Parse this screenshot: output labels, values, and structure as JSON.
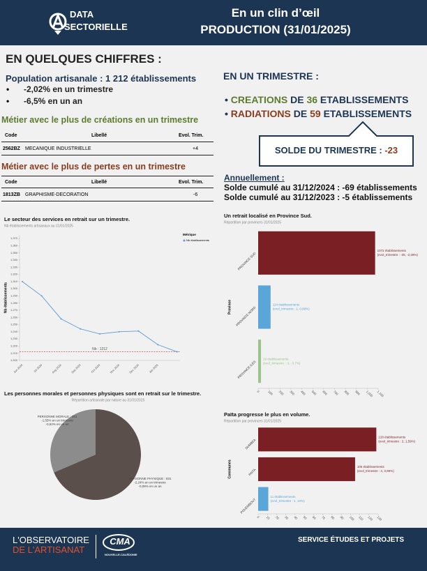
{
  "header": {
    "logo": [
      "DATA",
      "SECTORIELLE"
    ],
    "title": [
      "En un clin d’œil",
      "PRODUCTION (31/01/2025)"
    ]
  },
  "summary": {
    "heading": "EN QUELQUES CHIFFRES :",
    "population": "Population artisanale : 1 212 établissements",
    "bullets": [
      "-2,02% en un trimestre",
      "-6,5% en un an"
    ]
  },
  "creations_table": {
    "heading": "Métier avec le plus de créations en un trimestre",
    "columns": [
      "Code",
      "Libellé",
      "Evol. Trim."
    ],
    "rows": [
      [
        "2562BZ",
        "MECANIQUE INDUSTRIELLE",
        "+4"
      ]
    ]
  },
  "losses_table": {
    "heading": "Métier avec le plus de pertes en un trimestre",
    "columns": [
      "Code",
      "Libellé",
      "Evol. Trim."
    ],
    "rows": [
      [
        "1813ZB",
        "GRAPHISME-DECORATION",
        "-6"
      ]
    ]
  },
  "trimestre": {
    "heading": "EN UN TRIMESTRE :",
    "lines": [
      [
        "CREATIONS",
        "DE",
        "36",
        "ETABLISSEMENTS"
      ],
      [
        "RADIATIONS",
        "DE",
        "59",
        "ETABLISSEMENTS"
      ]
    ],
    "balance_label": "SOLDE DU TRIMESTRE :",
    "balance_value": "-23"
  },
  "annual": {
    "heading": "Annuellement :",
    "lines": [
      "Solde cumulé au 31/12/2024 : -69 établissements",
      "Solde cumulé au 31/12/2023 : -5 établissements"
    ]
  },
  "chart_data": [
    {
      "type": "line",
      "title": "Le secteur des services en retrait sur un trimestre.",
      "subtitle": "Nb établissements artisanaux au 31/01/2025",
      "y_label": "Nb établissements",
      "legend_title": "Métrique",
      "legend": "right",
      "categories": [
        "Jun 2024",
        "Jul 2024",
        "Aug 2024",
        "Sep 2024",
        "Oct 2024",
        "Nov 2024",
        "Dec 2024",
        "Jan 2025",
        null
      ],
      "series": [
        {
          "name": "Nb établissements",
          "color": "#5b9bd5",
          "values": [
            1310,
            1290,
            1258,
            1244,
            1237,
            1240,
            1241,
            1222,
            1212
          ]
        }
      ],
      "ylim": [
        1200,
        1375
      ],
      "yticks": [
        {
          "value": 1200,
          "label": "1,200"
        },
        {
          "value": 1210,
          "label": "1,210"
        },
        {
          "value": 1220,
          "label": "1,220"
        },
        {
          "value": 1230,
          "label": "1,230"
        },
        {
          "value": 1240,
          "label": "1,240"
        },
        {
          "value": 1250,
          "label": "1,250"
        },
        {
          "value": 1260,
          "label": "1,260"
        },
        {
          "value": 1270,
          "label": "1,270"
        },
        {
          "value": 1280,
          "label": "1,280"
        },
        {
          "value": 1290,
          "label": "1,290"
        },
        {
          "value": 1300,
          "label": "1,300"
        },
        {
          "value": 1310,
          "label": "1,310"
        },
        {
          "value": 1320,
          "label": "1,320"
        },
        {
          "value": 1330,
          "label": "1,330"
        },
        {
          "value": 1340,
          "label": "1,340"
        },
        {
          "value": 1350,
          "label": "1,350"
        },
        {
          "value": 1360,
          "label": "1,360"
        },
        {
          "value": 1370,
          "label": "1,370"
        }
      ],
      "reference_line": {
        "value": 1212,
        "label": "Nb : 1212",
        "color": "#c0504d"
      }
    },
    {
      "type": "pie",
      "title": "Les personnes morales et personnes physiques sont en retrait sur le trimestre.",
      "subtitle": "Répartition artisanale par nature au 31/01/2025",
      "categories": [
        "PERSONNE MORALE : 381",
        "PERSONNE PHYSIQUE : 831"
      ],
      "values": [
        381,
        831
      ],
      "colors": [
        "#8c8c8c",
        "#5b4f4b"
      ],
      "details": [
        [
          "-1,55% en un trimestre",
          "-0,52% en un an"
        ],
        [
          "-2,24% en un trimestre",
          "-0,08% en un an"
        ]
      ]
    },
    {
      "type": "hbar",
      "title": "Un retrait localisé en Province Sud.",
      "subtitle": "Répartition par provinces 31/01/2025",
      "y_label": "Province",
      "categories": [
        "PROVINCE SUD",
        "PROVINCE NORD",
        "PROVINCE ILES"
      ],
      "values": [
        1072,
        114,
        26
      ],
      "colors": [
        "#7a1f24",
        "#5aa6d8",
        "#9cc38a"
      ],
      "value_labels": [
        "1072 établissements",
        "114 établissements",
        "26 établissements"
      ],
      "details": [
        "(evol_trimestre : -25, -2,28%)",
        "(evol_trimestre : 1, 0,88%)",
        "(evol_trimestre : -1, -3,7%)"
      ],
      "xlim": [
        0,
        1100
      ],
      "xticks": [
        0,
        100,
        200,
        300,
        400,
        500,
        600,
        700,
        800,
        900,
        {
          "value": 1000,
          "label": "1,000"
        },
        {
          "value": 1100,
          "label": "1,100"
        }
      ]
    },
    {
      "type": "hbar",
      "title": "Païta progresse le plus en volume.",
      "subtitle": "Répartition par provinces 31/01/2025",
      "y_label": "Communes",
      "categories": [
        "DUMBEA",
        "PAITA",
        "POUEMBOUT"
      ],
      "values": [
        128,
        105,
        11
      ],
      "colors": [
        "#7a1f24",
        "#7a1f24",
        "#5aa6d8"
      ],
      "value_labels": [
        "128 établissements",
        "105 établissements",
        "11 établissements"
      ],
      "details": [
        "(evol_trimestre : 2, 1,59%)",
        "(evol_trimestre : 4, 3,96%)",
        "(evol_trimestre : 1, 10%)"
      ],
      "xlim": [
        0,
        130
      ],
      "xticks": [
        0,
        10,
        20,
        30,
        40,
        50,
        60,
        70,
        80,
        90,
        100,
        110,
        120,
        130
      ]
    }
  ],
  "footer": {
    "observatory": [
      "L'OBSERVATOIRE",
      "DE L'ARTISANAT"
    ],
    "cma": [
      "CMA",
      "NOUVELLE-CALÉDONIE"
    ],
    "service": "SERVICE ÉTUDES ET PROJETS"
  }
}
